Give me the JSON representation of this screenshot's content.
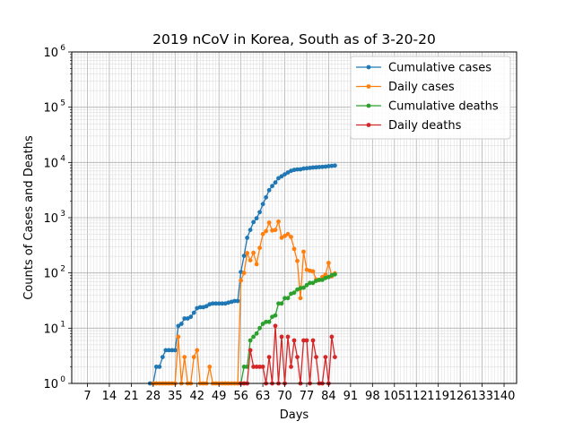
{
  "chart_data": {
    "type": "line",
    "title": "2019 nCoV in Korea, South as of 3-20-20",
    "xlabel": "Days",
    "ylabel": "Counts of Cases and Deaths",
    "xlim": [
      2,
      144
    ],
    "ylim": [
      1,
      1000000
    ],
    "yscale": "log",
    "grid": true,
    "legend_position": "top-right",
    "x_ticks": [
      7,
      14,
      21,
      28,
      35,
      42,
      49,
      56,
      63,
      70,
      77,
      84,
      91,
      98,
      105,
      112,
      119,
      126,
      133,
      140
    ],
    "x_tick_labels": [
      "7",
      "14",
      "21",
      "28",
      "35",
      "42",
      "49",
      "56",
      "63",
      "70",
      "77",
      "84",
      "91",
      "98",
      "105",
      "112",
      "119",
      "126",
      "133",
      "140"
    ],
    "y_ticks": [
      1,
      10,
      100,
      1000,
      10000,
      100000,
      1000000
    ],
    "y_tick_base": [
      "10",
      "10",
      "10",
      "10",
      "10",
      "10",
      "10"
    ],
    "y_tick_exp": [
      "0",
      "1",
      "2",
      "3",
      "4",
      "5",
      "6"
    ],
    "series": [
      {
        "name": "Cumulative cases",
        "color": "#1f77b4",
        "x": [
          27,
          28,
          29,
          30,
          31,
          32,
          33,
          34,
          35,
          36,
          37,
          38,
          39,
          40,
          41,
          42,
          43,
          44,
          45,
          46,
          47,
          48,
          49,
          50,
          51,
          52,
          53,
          54,
          55,
          56,
          57,
          58,
          59,
          60,
          61,
          62,
          63,
          64,
          65,
          66,
          67,
          68,
          69,
          70,
          71,
          72,
          73,
          74,
          75,
          76,
          77,
          78,
          79,
          80,
          81,
          82,
          83,
          84,
          85,
          86
        ],
        "y": [
          1,
          1,
          2,
          2,
          3,
          4,
          4,
          4,
          4,
          11,
          12,
          15,
          15,
          16,
          19,
          23,
          24,
          24,
          25,
          27,
          28,
          28,
          28,
          28,
          28,
          29,
          30,
          31,
          31,
          104,
          204,
          433,
          602,
          833,
          977,
          1261,
          1766,
          2337,
          3150,
          3736,
          4335,
          5186,
          5621,
          6088,
          6593,
          7041,
          7313,
          7478,
          7513,
          7755,
          7869,
          7979,
          8086,
          8162,
          8236,
          8320,
          8413,
          8565,
          8652,
          8799
        ]
      },
      {
        "name": "Daily cases",
        "color": "#ff7f0e",
        "x": [
          28,
          29,
          30,
          31,
          32,
          33,
          34,
          35,
          36,
          37,
          38,
          39,
          40,
          41,
          42,
          43,
          44,
          45,
          46,
          47,
          48,
          49,
          50,
          51,
          52,
          53,
          54,
          55,
          56,
          57,
          58,
          59,
          60,
          61,
          62,
          63,
          64,
          65,
          66,
          67,
          68,
          69,
          70,
          71,
          72,
          73,
          74,
          75,
          76,
          77,
          78,
          79,
          80,
          81,
          82,
          83,
          84,
          85,
          86
        ],
        "y": [
          1,
          1,
          1,
          1,
          1,
          1,
          1,
          1,
          7,
          1,
          3,
          1,
          1,
          3,
          4,
          1,
          1,
          1,
          2,
          1,
          1,
          1,
          1,
          1,
          1,
          1,
          1,
          1,
          73,
          100,
          229,
          169,
          231,
          144,
          284,
          505,
          571,
          813,
          586,
          599,
          851,
          435,
          467,
          505,
          448,
          272,
          165,
          35,
          242,
          114,
          110,
          107,
          76,
          74,
          84,
          93,
          152,
          87,
          98
        ]
      },
      {
        "name": "Cumulative deaths",
        "color": "#2ca02c",
        "x": [
          56,
          57,
          58,
          59,
          60,
          61,
          62,
          63,
          64,
          65,
          66,
          67,
          68,
          69,
          70,
          71,
          72,
          73,
          74,
          75,
          76,
          77,
          78,
          79,
          80,
          81,
          82,
          83,
          84,
          85,
          86
        ],
        "y": [
          1,
          2,
          2,
          6,
          7,
          8,
          10,
          12,
          13,
          13,
          16,
          17,
          28,
          28,
          35,
          35,
          42,
          44,
          50,
          53,
          54,
          60,
          66,
          66,
          72,
          75,
          75,
          81,
          84,
          91,
          94
        ]
      },
      {
        "name": "Daily deaths",
        "color": "#d62728",
        "x": [
          56,
          57,
          58,
          59,
          60,
          61,
          62,
          63,
          64,
          65,
          66,
          67,
          68,
          69,
          70,
          71,
          72,
          73,
          74,
          75,
          76,
          77,
          78,
          79,
          80,
          81,
          82,
          83,
          84,
          85,
          86
        ],
        "y": [
          1,
          1,
          1,
          4,
          2,
          2,
          2,
          2,
          1,
          3,
          1,
          11,
          1,
          7,
          1,
          7,
          2,
          6,
          3,
          1,
          6,
          6,
          1,
          6,
          3,
          1,
          1,
          3,
          1,
          7,
          3
        ]
      }
    ]
  }
}
